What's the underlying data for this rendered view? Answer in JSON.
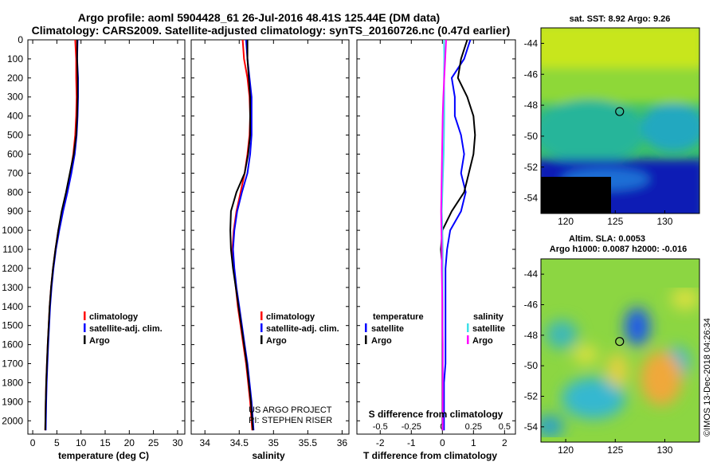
{
  "title": {
    "line1": "Argo profile: aoml 5904428_61 26-Jul-2016 48.41S 125.44E (DM data)",
    "line2": "Climatology: CARS2009. Satellite-adjusted climatology: synTS_20160726.nc (0.47d earlier)"
  },
  "credit": {
    "line1": "US ARGO PROJECT",
    "line2": "PI: STEPHEN RISER"
  },
  "stamp": "©IMOS 13-Dec-2018 04:26:34",
  "colors": {
    "climatology": "#ff0000",
    "satellite": "#0000ff",
    "argo": "#000000",
    "salinity_satellite": "#40e0e8",
    "salinity_argo": "#ff00ff"
  },
  "chart_data": [
    {
      "type": "line",
      "panel": "temperature",
      "xlabel": "temperature (deg C)",
      "ylabel": "",
      "xlim": [
        -1,
        31.5
      ],
      "ylim": [
        2070,
        0
      ],
      "xticks": [
        0,
        5,
        10,
        15,
        20,
        25,
        30
      ],
      "yticks": [
        0,
        100,
        200,
        300,
        400,
        500,
        600,
        700,
        800,
        900,
        1000,
        1100,
        1200,
        1300,
        1400,
        1500,
        1600,
        1700,
        1800,
        1900,
        2000
      ],
      "legend": {
        "placement": "bottom-right",
        "entries": [
          "climatology",
          "satellite-adj. clim.",
          "Argo"
        ]
      },
      "series": [
        {
          "name": "climatology",
          "color": "#ff0000",
          "x": [
            8.8,
            9.0,
            9.0,
            9.1,
            9.0,
            8.8,
            8.4,
            7.8,
            7.1,
            6.2,
            5.3,
            4.7,
            4.2,
            3.8,
            3.5,
            3.3,
            3.1,
            2.95,
            2.8,
            2.7,
            2.6
          ],
          "y": [
            0,
            100,
            200,
            300,
            400,
            500,
            600,
            700,
            800,
            900,
            1000,
            1100,
            1200,
            1300,
            1400,
            1500,
            1600,
            1700,
            1800,
            1900,
            2050
          ]
        },
        {
          "name": "satellite-adj. clim.",
          "color": "#0000ff",
          "x": [
            9.3,
            9.2,
            9.4,
            9.4,
            9.3,
            9.1,
            8.7,
            8.0,
            7.2,
            6.3,
            5.5,
            4.8,
            4.3,
            3.9,
            3.6,
            3.4,
            3.2,
            3.05,
            2.9,
            2.8,
            2.7
          ],
          "y": [
            0,
            100,
            200,
            300,
            400,
            500,
            600,
            700,
            800,
            900,
            1000,
            1100,
            1200,
            1300,
            1400,
            1500,
            1600,
            1700,
            1800,
            1900,
            2050
          ]
        },
        {
          "name": "Argo",
          "color": "#000000",
          "x": [
            9.2,
            9.2,
            9.3,
            9.3,
            9.2,
            9.0,
            8.5,
            7.7,
            6.9,
            6.0,
            5.3,
            4.7,
            4.2,
            3.8,
            3.5,
            3.3,
            3.1,
            2.95,
            2.8,
            2.7,
            2.6
          ],
          "y": [
            0,
            100,
            200,
            300,
            400,
            500,
            600,
            700,
            800,
            900,
            1000,
            1100,
            1200,
            1300,
            1400,
            1500,
            1600,
            1700,
            1800,
            1900,
            2050
          ]
        }
      ]
    },
    {
      "type": "line",
      "panel": "salinity",
      "xlabel": "salinity",
      "ylabel": "",
      "xlim": [
        33.8,
        36.1
      ],
      "ylim": [
        2070,
        0
      ],
      "xticks": [
        34,
        34.5,
        35,
        35.5,
        36
      ],
      "legend": {
        "placement": "bottom-right",
        "entries": [
          "climatology",
          "satellite-adj. clim.",
          "Argo"
        ]
      },
      "series": [
        {
          "name": "climatology",
          "color": "#ff0000",
          "x": [
            34.55,
            34.57,
            34.62,
            34.65,
            34.66,
            34.65,
            34.62,
            34.58,
            34.52,
            34.46,
            34.42,
            34.4,
            34.42,
            34.45,
            34.48,
            34.52,
            34.56,
            34.6,
            34.63,
            34.66,
            34.69
          ],
          "y": [
            0,
            100,
            200,
            300,
            400,
            500,
            600,
            700,
            800,
            900,
            1000,
            1100,
            1200,
            1300,
            1400,
            1500,
            1600,
            1700,
            1800,
            1900,
            2050
          ]
        },
        {
          "name": "satellite-adj. clim.",
          "color": "#0000ff",
          "x": [
            34.6,
            34.62,
            34.65,
            34.68,
            34.68,
            34.68,
            34.66,
            34.62,
            34.54,
            34.47,
            34.43,
            34.41,
            34.43,
            34.46,
            34.5,
            34.54,
            34.58,
            34.62,
            34.65,
            34.68,
            34.71
          ],
          "y": [
            0,
            100,
            200,
            300,
            400,
            500,
            600,
            700,
            800,
            900,
            1000,
            1100,
            1200,
            1300,
            1400,
            1500,
            1600,
            1700,
            1800,
            1900,
            2050
          ]
        },
        {
          "name": "Argo",
          "color": "#000000",
          "x": [
            34.62,
            34.62,
            34.64,
            34.66,
            34.66,
            34.66,
            34.63,
            34.58,
            34.46,
            34.38,
            34.37,
            34.38,
            34.41,
            34.45,
            34.49,
            34.53,
            34.57,
            34.61,
            34.64,
            34.67,
            34.7
          ],
          "y": [
            0,
            100,
            200,
            300,
            400,
            500,
            600,
            700,
            800,
            900,
            1000,
            1100,
            1200,
            1300,
            1400,
            1500,
            1600,
            1700,
            1800,
            1900,
            2050
          ]
        }
      ]
    },
    {
      "type": "line",
      "panel": "difference",
      "xlabel": "T difference from climatology",
      "xlabel2": "S difference from climatology",
      "ylabel": "",
      "xlim": [
        -2.75,
        2.35
      ],
      "ylim": [
        2070,
        0
      ],
      "xticks": [
        -2,
        -1,
        0,
        1,
        2
      ],
      "xticks2": [
        "-0.5",
        "-0.25",
        "0",
        "0.25",
        "0.5"
      ],
      "legend": {
        "placement": "bottom",
        "temperature_title": "temperature",
        "salinity_title": "salinity",
        "temperature_entries": [
          "satellite",
          "Argo"
        ],
        "salinity_entries": [
          "satellite",
          "Argo"
        ]
      },
      "series": [
        {
          "name": "temperature satellite",
          "color": "#0000ff",
          "x": [
            0.9,
            0.7,
            0.3,
            0.4,
            0.4,
            0.6,
            0.7,
            0.6,
            0.75,
            0.6,
            0.25,
            0.15,
            0.1,
            0.1,
            0.1,
            0.1,
            0.1,
            0.1,
            0.05,
            0.05,
            0.05
          ],
          "y": [
            0,
            100,
            200,
            300,
            400,
            500,
            600,
            700,
            800,
            900,
            1000,
            1100,
            1200,
            1300,
            1400,
            1500,
            1600,
            1700,
            1800,
            1900,
            2050
          ]
        },
        {
          "name": "temperature Argo",
          "color": "#000000",
          "x": [
            0.8,
            0.6,
            0.5,
            0.8,
            1.0,
            1.05,
            1.0,
            0.85,
            0.7,
            0.3,
            0.0,
            -0.05,
            0.0,
            0.0,
            0.0,
            0.0,
            0.0,
            0.0,
            0.0,
            0.0,
            0.0
          ],
          "y": [
            0,
            100,
            200,
            300,
            400,
            500,
            600,
            700,
            800,
            900,
            1000,
            1100,
            1200,
            1300,
            1400,
            1500,
            1600,
            1700,
            1800,
            1900,
            2050
          ]
        },
        {
          "name": "salinity satellite",
          "color": "#40e0e8",
          "x": [
            0.05,
            0.06,
            0.05,
            0.06,
            0.06,
            0.05,
            0.04,
            0.02,
            0.0,
            -0.02,
            0.0,
            0.01,
            0.01,
            0.01,
            0.01,
            0.01,
            0.01,
            0.01,
            0.01,
            0.01,
            0.01
          ],
          "y": [
            0,
            100,
            200,
            300,
            400,
            500,
            600,
            700,
            800,
            900,
            1000,
            1100,
            1200,
            1300,
            1400,
            1500,
            1600,
            1700,
            1800,
            1900,
            2050
          ]
        },
        {
          "name": "salinity Argo",
          "color": "#ff00ff",
          "x": [
            0.12,
            0.09,
            0.06,
            0.03,
            0.01,
            0.0,
            -0.01,
            -0.02,
            -0.03,
            -0.04,
            -0.03,
            -0.02,
            -0.02,
            -0.01,
            0.0,
            0.0,
            0.01,
            0.01,
            0.01,
            0.01,
            0.01
          ],
          "y": [
            0,
            100,
            200,
            300,
            400,
            500,
            600,
            700,
            800,
            900,
            1000,
            1100,
            1200,
            1300,
            1400,
            1500,
            1600,
            1700,
            1800,
            1900,
            2050
          ]
        }
      ]
    },
    {
      "type": "heatmap",
      "panel": "sst_map",
      "title": "sat. SST: 8.92 Argo: 9.26",
      "xlim": [
        117.5,
        133.5
      ],
      "ylim": [
        -55,
        -43
      ],
      "xticks": [
        120,
        125,
        130
      ],
      "yticks": [
        -44,
        -46,
        -48,
        -50,
        -52,
        -54
      ],
      "marker": {
        "lon": 125.44,
        "lat": -48.41
      }
    },
    {
      "type": "heatmap",
      "panel": "altimetry_map",
      "title": "Altim. SLA: 0.0053",
      "subtitle": "Argo h1000: 0.0087 h2000: -0.016",
      "xlim": [
        117.5,
        133.5
      ],
      "ylim": [
        -55,
        -43
      ],
      "xticks": [
        120,
        125,
        130
      ],
      "yticks": [
        -44,
        -46,
        -48,
        -50,
        -52,
        -54
      ],
      "marker": {
        "lon": 125.44,
        "lat": -48.41
      }
    }
  ]
}
